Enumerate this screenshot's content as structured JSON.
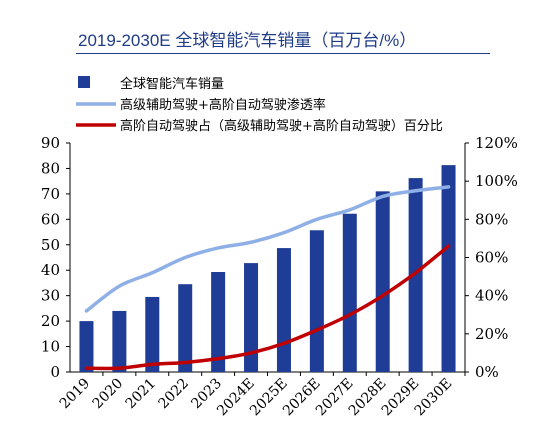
{
  "header": {
    "title": "2019-2030E 全球智能汽车销量（百万台/%）"
  },
  "colors": {
    "bar": "#1f3c96",
    "adas_line": "#8fb0e6",
    "nav_line": "#c00000",
    "title": "#1f3c88"
  },
  "chart_data": {
    "type": "bar",
    "title": "2019-2030E 全球智能汽车销量（百万台/%）",
    "categories": [
      "2019",
      "2020",
      "2021",
      "2022",
      "2023",
      "2024E",
      "2025E",
      "2026E",
      "2027E",
      "2028E",
      "2029E",
      "2030E"
    ],
    "y_left": {
      "ylim": [
        0,
        90
      ],
      "ticks": [
        "0",
        "10",
        "20",
        "30",
        "40",
        "50",
        "60",
        "70",
        "80",
        "90"
      ]
    },
    "y_right": {
      "ylim": [
        0,
        120
      ],
      "ticks": [
        "0%",
        "20%",
        "40%",
        "60%",
        "80%",
        "100%",
        "120%"
      ]
    },
    "series": [
      {
        "name": "全球智能汽车销量",
        "kind": "bar",
        "axis": "left",
        "values": [
          20,
          24,
          29.5,
          34.5,
          39.3,
          42.8,
          48.7,
          55.7,
          62.2,
          71,
          76.2,
          81.3
        ]
      },
      {
        "name": "高级辅助驾驶+高阶自动驾驶渗透率",
        "kind": "line",
        "axis": "right",
        "values": [
          32,
          45,
          52,
          60,
          65,
          68,
          73,
          80,
          85,
          92,
          95,
          97
        ]
      },
      {
        "name": "高阶自动驾驶占（高级辅助驾驶+高阶自动驾驶）百分比",
        "kind": "line",
        "axis": "right",
        "values": [
          2,
          2,
          4,
          5,
          7,
          10,
          15,
          22,
          30,
          40,
          52,
          66
        ]
      }
    ],
    "legend_position": "top-left",
    "grid": false
  }
}
